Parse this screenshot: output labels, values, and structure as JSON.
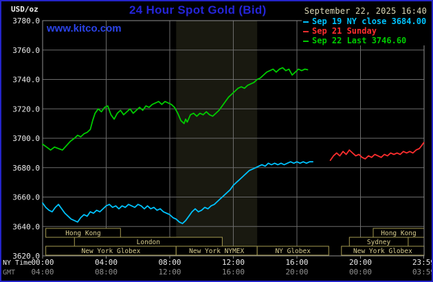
{
  "header": {
    "units_label": "USD/oz",
    "title": "24 Hour Spot Gold (Bid)",
    "datetime": "September 22, 2025 16:40",
    "watermark": "www.kitco.com",
    "legend": [
      {
        "label": "Sep 19 NY close 3684.00",
        "color": "#00C3FF"
      },
      {
        "label": "Sep 21 Sunday",
        "color": "#FF2E2E"
      },
      {
        "label": "Sep 22 Last 3746.60",
        "color": "#00CC00"
      }
    ]
  },
  "axes": {
    "ny_label": "NY Time",
    "gmt_label": "GMT"
  },
  "colors": {
    "title_blue": "#2525D8",
    "link_blue": "#2B43E8",
    "date_text": "#DCD9B8",
    "grid": "#6C6C6C",
    "border": "#909090",
    "axis_text": "#EDEDED",
    "gmt_text": "#909090",
    "band": "#191910",
    "session_border": "#A59A50",
    "session_text": "#D8CD8E"
  },
  "chart_data": {
    "type": "line",
    "title": "24 Hour Spot Gold (Bid)",
    "xlabel": "NY Time",
    "ylabel": "USD/oz",
    "x_range": [
      0,
      24
    ],
    "y_range": [
      3620,
      3780
    ],
    "y_ticks": [
      3620,
      3640,
      3660,
      3680,
      3700,
      3720,
      3740,
      3760,
      3780
    ],
    "x_gridlines": [
      4,
      8,
      12,
      16,
      20
    ],
    "x_ticks": [
      {
        "h": 0,
        "ny": "00:00",
        "gmt": "04:00"
      },
      {
        "h": 4,
        "ny": "04:00",
        "gmt": "08:00"
      },
      {
        "h": 8,
        "ny": "08:00",
        "gmt": "12:00"
      },
      {
        "h": 12,
        "ny": "12:00",
        "gmt": "16:00"
      },
      {
        "h": 16,
        "ny": "16:00",
        "gmt": "20:00"
      },
      {
        "h": 20,
        "ny": "20:00",
        "gmt": "00:00"
      },
      {
        "h": 23.98,
        "ny": "23:59",
        "gmt": "03:59"
      }
    ],
    "highlight_band": [
      8.4,
      13.5
    ],
    "series": [
      {
        "name": "Sep 19 NY close",
        "color": "#00C3FF",
        "close": 3684.0,
        "points": [
          [
            0,
            3656
          ],
          [
            0.2,
            3653
          ],
          [
            0.4,
            3651
          ],
          [
            0.6,
            3650
          ],
          [
            0.8,
            3653
          ],
          [
            1.0,
            3655
          ],
          [
            1.2,
            3652
          ],
          [
            1.4,
            3649
          ],
          [
            1.6,
            3647
          ],
          [
            1.8,
            3645
          ],
          [
            2.0,
            3644
          ],
          [
            2.2,
            3643
          ],
          [
            2.4,
            3646
          ],
          [
            2.6,
            3648
          ],
          [
            2.8,
            3647
          ],
          [
            3.0,
            3650
          ],
          [
            3.2,
            3649
          ],
          [
            3.4,
            3651
          ],
          [
            3.6,
            3650
          ],
          [
            3.8,
            3652
          ],
          [
            4.0,
            3654
          ],
          [
            4.2,
            3655
          ],
          [
            4.4,
            3653
          ],
          [
            4.6,
            3654
          ],
          [
            4.8,
            3652
          ],
          [
            5.0,
            3654
          ],
          [
            5.2,
            3653
          ],
          [
            5.4,
            3655
          ],
          [
            5.6,
            3654
          ],
          [
            5.8,
            3653
          ],
          [
            6.0,
            3655
          ],
          [
            6.2,
            3654
          ],
          [
            6.4,
            3652
          ],
          [
            6.6,
            3654
          ],
          [
            6.8,
            3652
          ],
          [
            7.0,
            3653
          ],
          [
            7.2,
            3651
          ],
          [
            7.4,
            3652
          ],
          [
            7.6,
            3650
          ],
          [
            7.8,
            3649
          ],
          [
            8.0,
            3648
          ],
          [
            8.2,
            3646
          ],
          [
            8.4,
            3645
          ],
          [
            8.6,
            3643
          ],
          [
            8.8,
            3642
          ],
          [
            9.0,
            3644
          ],
          [
            9.2,
            3647
          ],
          [
            9.4,
            3650
          ],
          [
            9.6,
            3652
          ],
          [
            9.8,
            3650
          ],
          [
            10.0,
            3651
          ],
          [
            10.2,
            3653
          ],
          [
            10.4,
            3652
          ],
          [
            10.6,
            3654
          ],
          [
            10.8,
            3655
          ],
          [
            11.0,
            3657
          ],
          [
            11.2,
            3659
          ],
          [
            11.4,
            3661
          ],
          [
            11.6,
            3663
          ],
          [
            11.8,
            3665
          ],
          [
            12.0,
            3668
          ],
          [
            12.2,
            3670
          ],
          [
            12.4,
            3672
          ],
          [
            12.6,
            3674
          ],
          [
            12.8,
            3676
          ],
          [
            13.0,
            3678
          ],
          [
            13.2,
            3679
          ],
          [
            13.4,
            3680
          ],
          [
            13.6,
            3681
          ],
          [
            13.8,
            3682
          ],
          [
            14.0,
            3681
          ],
          [
            14.2,
            3683
          ],
          [
            14.4,
            3682
          ],
          [
            14.6,
            3683
          ],
          [
            14.8,
            3682
          ],
          [
            15.0,
            3683
          ],
          [
            15.2,
            3682
          ],
          [
            15.4,
            3683
          ],
          [
            15.6,
            3684
          ],
          [
            15.8,
            3683
          ],
          [
            16.0,
            3684
          ],
          [
            16.2,
            3683
          ],
          [
            16.4,
            3684
          ],
          [
            16.6,
            3683
          ],
          [
            16.8,
            3684
          ],
          [
            17.0,
            3684
          ]
        ]
      },
      {
        "name": "Sep 21 Sunday",
        "color": "#FF2E2E",
        "points": [
          [
            18.1,
            3685
          ],
          [
            18.3,
            3688
          ],
          [
            18.5,
            3690
          ],
          [
            18.7,
            3688
          ],
          [
            18.9,
            3691
          ],
          [
            19.1,
            3689
          ],
          [
            19.3,
            3692
          ],
          [
            19.5,
            3690
          ],
          [
            19.7,
            3688
          ],
          [
            19.9,
            3689
          ],
          [
            20.1,
            3687
          ],
          [
            20.3,
            3686
          ],
          [
            20.5,
            3688
          ],
          [
            20.7,
            3687
          ],
          [
            20.9,
            3689
          ],
          [
            21.1,
            3688
          ],
          [
            21.3,
            3687
          ],
          [
            21.5,
            3689
          ],
          [
            21.7,
            3688
          ],
          [
            21.9,
            3690
          ],
          [
            22.1,
            3689
          ],
          [
            22.3,
            3690
          ],
          [
            22.5,
            3689
          ],
          [
            22.7,
            3691
          ],
          [
            22.9,
            3690
          ],
          [
            23.1,
            3691
          ],
          [
            23.3,
            3690
          ],
          [
            23.5,
            3692
          ],
          [
            23.7,
            3693
          ],
          [
            23.85,
            3695
          ],
          [
            23.98,
            3697
          ]
        ]
      },
      {
        "name": "Sep 22 Last",
        "color": "#00CC00",
        "last": 3746.6,
        "points": [
          [
            0,
            3696
          ],
          [
            0.25,
            3694
          ],
          [
            0.5,
            3692
          ],
          [
            0.75,
            3694
          ],
          [
            1.0,
            3693
          ],
          [
            1.25,
            3692
          ],
          [
            1.5,
            3695
          ],
          [
            1.75,
            3698
          ],
          [
            2.0,
            3700
          ],
          [
            2.2,
            3702
          ],
          [
            2.4,
            3701
          ],
          [
            2.6,
            3703
          ],
          [
            2.8,
            3704
          ],
          [
            3.0,
            3706
          ],
          [
            3.15,
            3712
          ],
          [
            3.3,
            3717
          ],
          [
            3.5,
            3720
          ],
          [
            3.7,
            3718
          ],
          [
            3.9,
            3721
          ],
          [
            4.1,
            3722
          ],
          [
            4.3,
            3716
          ],
          [
            4.5,
            3713
          ],
          [
            4.7,
            3717
          ],
          [
            4.9,
            3719
          ],
          [
            5.1,
            3716
          ],
          [
            5.3,
            3718
          ],
          [
            5.5,
            3720
          ],
          [
            5.7,
            3717
          ],
          [
            5.9,
            3719
          ],
          [
            6.1,
            3721
          ],
          [
            6.3,
            3719
          ],
          [
            6.5,
            3722
          ],
          [
            6.7,
            3721
          ],
          [
            6.9,
            3723
          ],
          [
            7.1,
            3724
          ],
          [
            7.3,
            3725
          ],
          [
            7.5,
            3723
          ],
          [
            7.7,
            3725
          ],
          [
            7.9,
            3724
          ],
          [
            8.1,
            3723
          ],
          [
            8.3,
            3721
          ],
          [
            8.5,
            3717
          ],
          [
            8.7,
            3712
          ],
          [
            8.9,
            3710
          ],
          [
            9.0,
            3713
          ],
          [
            9.1,
            3711
          ],
          [
            9.3,
            3716
          ],
          [
            9.5,
            3717
          ],
          [
            9.7,
            3715
          ],
          [
            9.9,
            3717
          ],
          [
            10.1,
            3716
          ],
          [
            10.3,
            3718
          ],
          [
            10.5,
            3716
          ],
          [
            10.7,
            3715
          ],
          [
            10.9,
            3717
          ],
          [
            11.1,
            3719
          ],
          [
            11.3,
            3722
          ],
          [
            11.5,
            3725
          ],
          [
            11.7,
            3728
          ],
          [
            11.9,
            3730
          ],
          [
            12.1,
            3732
          ],
          [
            12.3,
            3734
          ],
          [
            12.5,
            3735
          ],
          [
            12.7,
            3734
          ],
          [
            12.9,
            3736
          ],
          [
            13.1,
            3737
          ],
          [
            13.3,
            3738
          ],
          [
            13.5,
            3740
          ],
          [
            13.7,
            3741
          ],
          [
            13.9,
            3743
          ],
          [
            14.1,
            3745
          ],
          [
            14.3,
            3746
          ],
          [
            14.5,
            3747
          ],
          [
            14.7,
            3745
          ],
          [
            14.9,
            3747
          ],
          [
            15.1,
            3748
          ],
          [
            15.3,
            3746
          ],
          [
            15.5,
            3747
          ],
          [
            15.7,
            3743
          ],
          [
            15.9,
            3745
          ],
          [
            16.1,
            3747
          ],
          [
            16.3,
            3746
          ],
          [
            16.5,
            3747
          ],
          [
            16.67,
            3746.6
          ]
        ]
      }
    ],
    "sessions": [
      {
        "row": 0,
        "label": "Hong Kong",
        "start": 0.2,
        "end": 4.9
      },
      {
        "row": 0,
        "label": "Hong Kong",
        "start": 20.8,
        "end": 24
      },
      {
        "row": 1,
        "label": "London",
        "start": 2.0,
        "end": 11.3
      },
      {
        "row": 1,
        "label": "Sydney",
        "start": 19.3,
        "end": 23.0
      },
      {
        "row": 2,
        "label": "New York Globex",
        "start": 0.2,
        "end": 8.4
      },
      {
        "row": 2,
        "label": "New York NYMEX",
        "start": 8.4,
        "end": 13.5
      },
      {
        "row": 2,
        "label": "NY Globex",
        "start": 13.5,
        "end": 18.0
      },
      {
        "row": 2,
        "label": "New York Globex",
        "start": 18.8,
        "end": 24
      }
    ]
  }
}
